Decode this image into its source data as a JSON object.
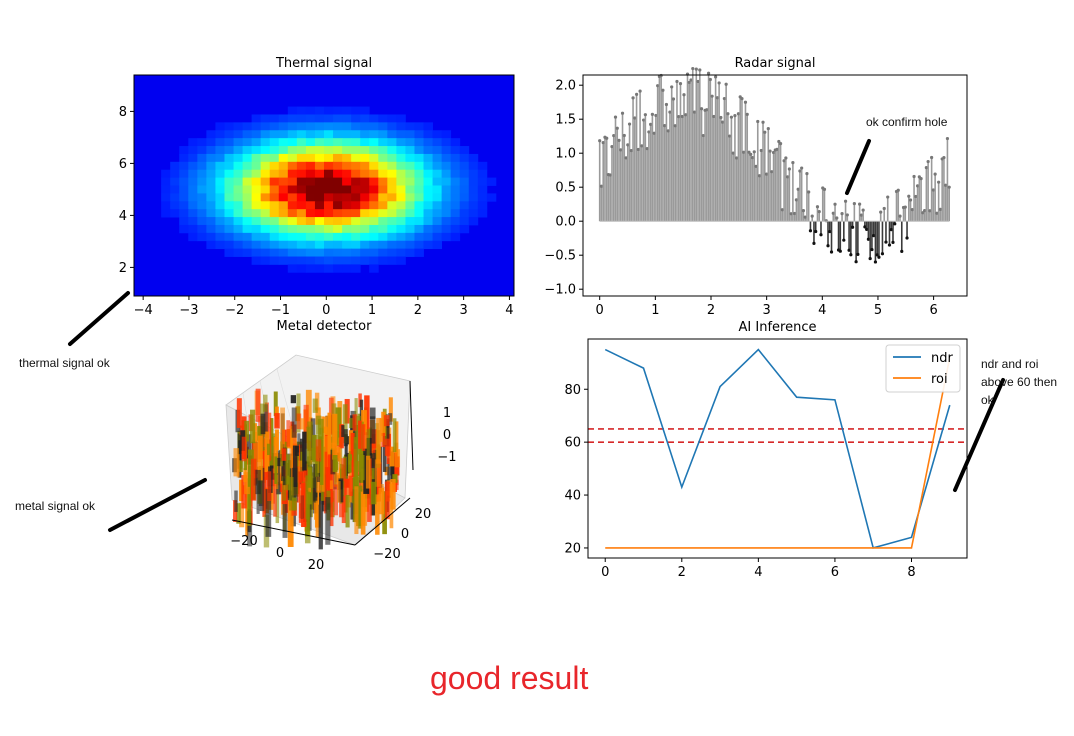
{
  "chart_data": [
    {
      "type": "heatmap",
      "title": "Thermal signal",
      "xlim": [
        -4.2,
        4.1
      ],
      "ylim": [
        0.9,
        9.4
      ],
      "xticks": [
        "−4",
        "−3",
        "−2",
        "−1",
        "0",
        "1",
        "2",
        "3",
        "4"
      ],
      "xtick_values": [
        -4,
        -3,
        -2,
        -1,
        0,
        1,
        2,
        3,
        4
      ],
      "yticks": [
        "2",
        "4",
        "6",
        "8"
      ],
      "ytick_values": [
        2,
        4,
        6,
        8
      ],
      "peak": {
        "x": 0,
        "y": 5.0
      },
      "spread": {
        "x": 1.45,
        "y": 1.25
      },
      "colormap": "jet"
    },
    {
      "type": "bar",
      "title": "Radar signal",
      "xlim": [
        -0.3,
        6.6
      ],
      "ylim": [
        -1.1,
        2.15
      ],
      "xticks": [
        "0",
        "1",
        "2",
        "3",
        "4",
        "5",
        "6"
      ],
      "xtick_values": [
        0,
        1,
        2,
        3,
        4,
        5,
        6
      ],
      "yticks": [
        "−1.0",
        "−0.5",
        "0.0",
        "0.5",
        "1.0",
        "1.5",
        "2.0"
      ],
      "ytick_values": [
        -1.0,
        -0.5,
        0.0,
        0.5,
        1.0,
        1.5,
        2.0
      ],
      "x_start": 0,
      "x_end": 6.28,
      "count": 200,
      "positive_color": "#9a9a9a",
      "negative_color": "#3a3a3a"
    },
    {
      "type": "area",
      "title": "Metal detector",
      "x_ticks": [
        "−20",
        "0",
        "20"
      ],
      "y_ticks": [
        "20",
        "0",
        "−20"
      ],
      "z_ticks": [
        "1",
        "0",
        "−1"
      ],
      "colors": [
        "#8a8a00",
        "#ff3300",
        "#ff8800",
        "#222222"
      ]
    },
    {
      "type": "line",
      "title": "AI Inference",
      "x": [
        0,
        1,
        2,
        3,
        4,
        5,
        6,
        7,
        8,
        9
      ],
      "series": [
        {
          "name": "ndr",
          "color": "#1f77b4",
          "values": [
            95,
            88,
            43,
            81,
            95,
            77,
            76,
            20,
            24,
            74
          ]
        },
        {
          "name": "roi",
          "color": "#ff7f0e",
          "values": [
            20,
            20,
            20,
            20,
            20,
            20,
            20,
            20,
            20,
            92
          ]
        }
      ],
      "hlines": [
        60,
        65
      ],
      "hline_color": "#d62728",
      "xlim": [
        -0.45,
        9.45
      ],
      "ylim": [
        16.2,
        99.0
      ],
      "xticks": [
        "0",
        "2",
        "4",
        "6",
        "8"
      ],
      "xtick_values": [
        0,
        2,
        4,
        6,
        8
      ],
      "yticks": [
        "20",
        "40",
        "60",
        "80"
      ],
      "ytick_values": [
        20,
        40,
        60,
        80
      ],
      "legend_position": "top-right"
    }
  ],
  "annotations": {
    "thermal": "thermal signal ok",
    "metal": "metal signal ok",
    "radar": "ok confirm hole",
    "ai": [
      "ndr and roi",
      "above 60 then",
      "ok"
    ],
    "result": "good result"
  }
}
